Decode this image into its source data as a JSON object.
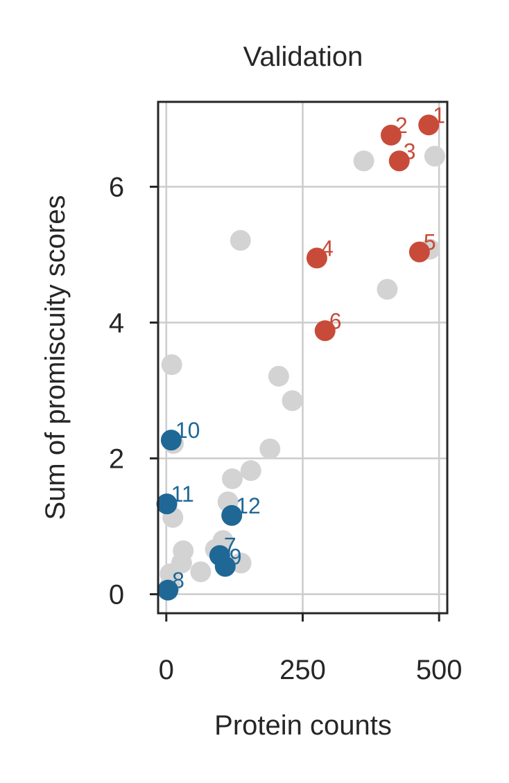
{
  "chart_data": {
    "type": "scatter",
    "title": "Validation",
    "xlabel": "Protein counts",
    "ylabel": "Sum of promiscuity scores",
    "xlim": [
      -15,
      515
    ],
    "ylim": [
      -0.28,
      7.25
    ],
    "xticks": [
      0,
      250,
      500
    ],
    "yticks": [
      0,
      2,
      4,
      6
    ],
    "grid": true,
    "colors": {
      "background": "#d3d3d3",
      "high": "#c84b3a",
      "low": "#1f6896"
    },
    "series": [
      {
        "group": "background",
        "points": [
          {
            "x": 362,
            "y": 6.38
          },
          {
            "x": 492,
            "y": 6.45
          },
          {
            "x": 483,
            "y": 5.08
          },
          {
            "x": 405,
            "y": 4.49
          },
          {
            "x": 136,
            "y": 5.21
          },
          {
            "x": 10,
            "y": 3.38
          },
          {
            "x": 206,
            "y": 3.21
          },
          {
            "x": 231,
            "y": 2.85
          },
          {
            "x": 190,
            "y": 2.14
          },
          {
            "x": 155,
            "y": 1.82
          },
          {
            "x": 121,
            "y": 1.7
          },
          {
            "x": 13,
            "y": 2.22
          },
          {
            "x": 113,
            "y": 1.36
          },
          {
            "x": 12,
            "y": 1.13
          },
          {
            "x": 31,
            "y": 0.64
          },
          {
            "x": 104,
            "y": 0.79
          },
          {
            "x": 90,
            "y": 0.66
          },
          {
            "x": 63,
            "y": 0.33
          },
          {
            "x": 137,
            "y": 0.46
          },
          {
            "x": 28,
            "y": 0.46
          },
          {
            "x": 7,
            "y": 0.3
          },
          {
            "x": 7,
            "y": 0.13
          }
        ]
      },
      {
        "group": "high",
        "points": [
          {
            "x": 481,
            "y": 6.91,
            "label": "1"
          },
          {
            "x": 412,
            "y": 6.76,
            "label": "2"
          },
          {
            "x": 427,
            "y": 6.38,
            "label": "3"
          },
          {
            "x": 276,
            "y": 4.95,
            "label": "4"
          },
          {
            "x": 464,
            "y": 5.04,
            "label": "5"
          },
          {
            "x": 291,
            "y": 3.88,
            "label": "6"
          }
        ]
      },
      {
        "group": "low",
        "points": [
          {
            "x": 98,
            "y": 0.57,
            "label": "7"
          },
          {
            "x": 3,
            "y": 0.06,
            "label": "8"
          },
          {
            "x": 108,
            "y": 0.41,
            "label": "9"
          },
          {
            "x": 9,
            "y": 2.27,
            "label": "10"
          },
          {
            "x": 1,
            "y": 1.33,
            "label": "11"
          },
          {
            "x": 120,
            "y": 1.16,
            "label": "12"
          }
        ]
      }
    ]
  }
}
